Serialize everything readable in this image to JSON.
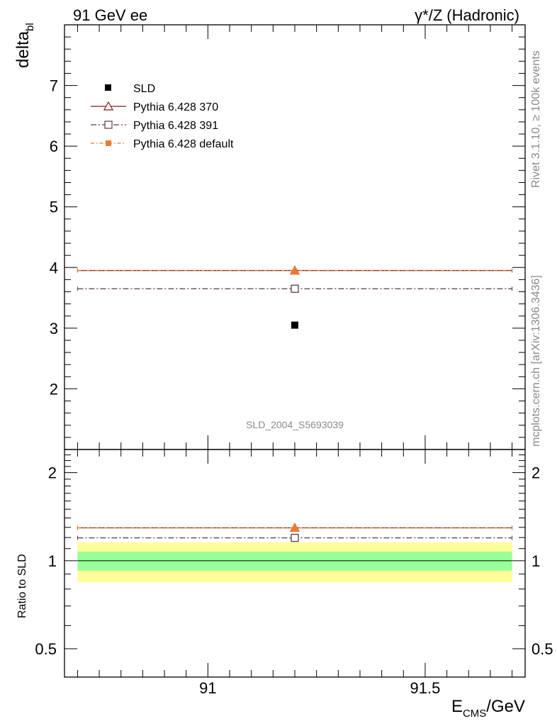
{
  "header": {
    "left": "91 GeV ee",
    "right_prefix": "γ*/Z",
    "right_suffix": "(Hadronic)"
  },
  "side_labels": {
    "rivet": "Rivet 3.1.10, ≥ 100k events",
    "mcplots": "mcplots.cern.ch [arXiv:1306.3436]"
  },
  "colors": {
    "data": "#000000",
    "pythia370": "#7f1f1f",
    "pythia391": "#5a3a4e",
    "pythia_default": "#f07a30",
    "band_inner": "#99ff99",
    "band_outer": "#ffff99"
  },
  "chart_data": [
    {
      "type": "scatter",
      "panel": "main",
      "ylabel_main": "delta",
      "ylabel_sub": "bl",
      "xlim": [
        90.67,
        91.73
      ],
      "ylim": [
        1.0,
        8.0
      ],
      "yticks": [
        2,
        3,
        4,
        5,
        6,
        7
      ],
      "x_center": 91.2,
      "x_range": [
        90.7,
        91.7
      ],
      "watermark": "SLD_2004_S5693039",
      "legend_position": "top-left",
      "series": [
        {
          "name": "SLD",
          "value": 3.05,
          "marker": "filled-square"
        },
        {
          "name": "Pythia 6.428 370",
          "value": 3.95,
          "marker": "open-triangle"
        },
        {
          "name": "Pythia 6.428 391",
          "value": 3.65,
          "marker": "open-square"
        },
        {
          "name": "Pythia 6.428 default",
          "value": 3.95,
          "marker": "filled-square-small"
        }
      ]
    },
    {
      "type": "line",
      "panel": "ratio",
      "ylabel": "Ratio to SLD",
      "xlabel_main": "E",
      "xlabel_sub": "CMS",
      "xlabel_unit": "/GeV",
      "xlim": [
        90.67,
        91.73
      ],
      "ylim": [
        0.4,
        2.4
      ],
      "yticks": [
        0.5,
        1,
        2
      ],
      "ytick_labels": [
        "0.5",
        "1",
        "2"
      ],
      "xticks": [
        91,
        91.5
      ],
      "xtick_labels": [
        "91",
        "91.5"
      ],
      "band_inner": [
        0.925,
        1.075
      ],
      "band_outer": [
        0.845,
        1.155
      ],
      "series": [
        {
          "name": "Pythia 6.428 370",
          "value": 1.295
        },
        {
          "name": "Pythia 6.428 391",
          "value": 1.197
        },
        {
          "name": "Pythia 6.428 default",
          "value": 1.295
        }
      ]
    }
  ]
}
